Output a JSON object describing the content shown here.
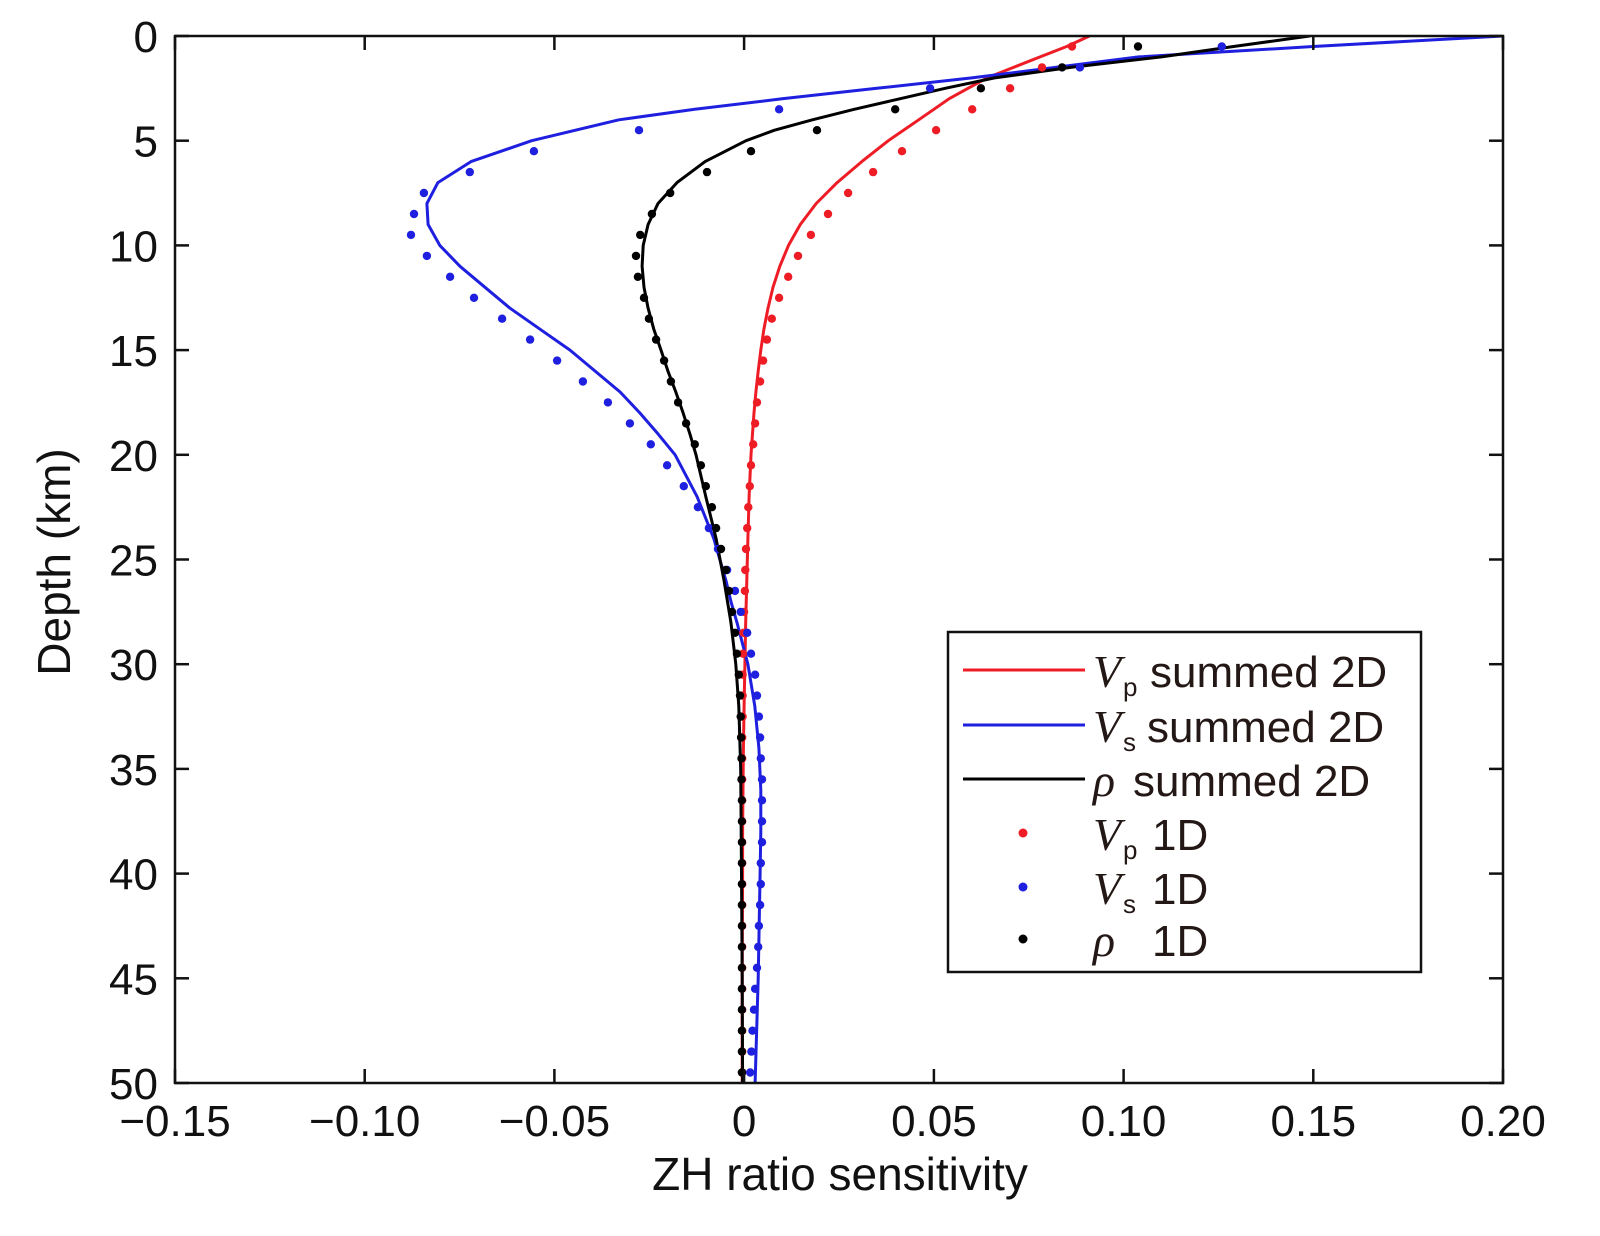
{
  "chart_data": {
    "type": "line",
    "xlabel": "ZH ratio sensitivity",
    "ylabel": "Depth (km)",
    "xlim": [
      -0.15,
      0.2
    ],
    "ylim": [
      0,
      50
    ],
    "y_inverted": true,
    "grid": false,
    "legend_position": "lower-right",
    "xticks": [
      -0.15,
      -0.1,
      -0.05,
      0,
      0.05,
      0.1,
      0.15,
      0.2
    ],
    "xtick_labels": [
      "−0.15",
      "−0.10",
      "−0.05",
      "0",
      "0.05",
      "0.10",
      "0.15",
      "0.20"
    ],
    "yticks": [
      0,
      5,
      10,
      15,
      20,
      25,
      30,
      35,
      40,
      45,
      50
    ],
    "ytick_labels": [
      "0",
      "5",
      "10",
      "15",
      "20",
      "25",
      "30",
      "35",
      "40",
      "45",
      "50"
    ],
    "series": [
      {
        "label_symbol": "V",
        "label_sub": "p",
        "label_text": "summed 2D",
        "color": "#ee1c25",
        "show_line": true,
        "show_markers": false,
        "depth": [
          0,
          0.5,
          1,
          1.5,
          2,
          2.5,
          3,
          3.5,
          4,
          5,
          6,
          7,
          8,
          9,
          10,
          11,
          12,
          13,
          14,
          15,
          16,
          17,
          18,
          19,
          20,
          22,
          24,
          26,
          28,
          30,
          32,
          34,
          36,
          38,
          40,
          45,
          50
        ],
        "values": [
          0.091,
          0.085,
          0.078,
          0.071,
          0.064,
          0.059,
          0.054,
          0.05,
          0.046,
          0.038,
          0.031,
          0.0245,
          0.019,
          0.0148,
          0.0117,
          0.0094,
          0.0076,
          0.0063,
          0.0052,
          0.0044,
          0.0037,
          0.0031,
          0.0026,
          0.0022,
          0.0018,
          0.0013,
          0.001,
          0.0007,
          0.0004,
          0.0002,
          0.0,
          -0.0002,
          -0.0003,
          -0.0004,
          -0.0004,
          -0.0005,
          -0.0005
        ]
      },
      {
        "label_symbol": "V",
        "label_sub": "s",
        "label_text": "summed 2D",
        "color": "#1f1fe0",
        "show_line": true,
        "show_markers": false,
        "depth": [
          0,
          0.5,
          1,
          1.5,
          2,
          2.5,
          3,
          3.5,
          4,
          5,
          6,
          7,
          8,
          9,
          10,
          11,
          12,
          13,
          14,
          15,
          16,
          17,
          18,
          19,
          20,
          22,
          24,
          26,
          27,
          28,
          30,
          32,
          34,
          36,
          38,
          40,
          45,
          50
        ],
        "values": [
          0.2,
          0.15,
          0.104,
          0.082,
          0.06,
          0.035,
          0.01,
          -0.013,
          -0.033,
          -0.056,
          -0.072,
          -0.0807,
          -0.0836,
          -0.0833,
          -0.0802,
          -0.0749,
          -0.0683,
          -0.0617,
          -0.0538,
          -0.0459,
          -0.0393,
          -0.0327,
          -0.0275,
          -0.0227,
          -0.0182,
          -0.0124,
          -0.008,
          -0.0048,
          -0.0035,
          -0.0019,
          0.001,
          0.0028,
          0.0039,
          0.0044,
          0.0044,
          0.0042,
          0.0037,
          0.0029
        ]
      },
      {
        "label_symbol": "ρ",
        "label_text": "summed 2D",
        "color": "#000000",
        "show_line": true,
        "show_markers": false,
        "depth": [
          0,
          0.5,
          1,
          1.5,
          2,
          2.5,
          3,
          3.5,
          4,
          4.5,
          5,
          6,
          7,
          8,
          9,
          10,
          11,
          12,
          13,
          14,
          15,
          16,
          17,
          18,
          19,
          20,
          22,
          24,
          26,
          28,
          30,
          32,
          35,
          40,
          45,
          50
        ],
        "values": [
          0.149,
          0.129,
          0.11,
          0.086,
          0.066,
          0.053,
          0.041,
          0.029,
          0.018,
          0.008,
          0.0005,
          -0.0103,
          -0.0177,
          -0.0227,
          -0.0253,
          -0.0266,
          -0.0269,
          -0.0264,
          -0.0253,
          -0.0238,
          -0.0219,
          -0.0201,
          -0.018,
          -0.0161,
          -0.0143,
          -0.0127,
          -0.0101,
          -0.0074,
          -0.0053,
          -0.0035,
          -0.0022,
          -0.0014,
          -0.0009,
          -0.0007,
          -0.0005,
          -0.0004
        ]
      },
      {
        "label_symbol": "V",
        "label_sub": "p",
        "label_text": "1D",
        "color": "#ee1c25",
        "show_line": false,
        "show_markers": true,
        "depth": [
          0.5,
          1.5,
          2.5,
          3.5,
          4.5,
          5.5,
          6.5,
          7.5,
          8.5,
          9.5,
          10.5,
          11.5,
          12.5,
          13.5,
          14.5,
          15.5,
          16.5,
          17.5,
          18.5,
          19.5,
          20.5,
          21.5,
          22.5,
          23.5,
          24.5,
          25.5,
          26.5,
          27.5,
          28.5,
          29.5,
          30.5,
          31.5,
          32.5,
          33.5,
          34.5,
          35.5,
          36.5,
          37.5,
          38.5,
          39.5,
          40.5,
          41.5,
          42.5,
          43.5,
          44.5,
          45.5,
          46.5,
          47.5,
          48.5,
          49.5
        ],
        "values": [
          0.0864,
          0.0785,
          0.0701,
          0.0601,
          0.0506,
          0.0416,
          0.034,
          0.0274,
          0.0221,
          0.0176,
          0.0142,
          0.0116,
          0.0092,
          0.0073,
          0.006,
          0.005,
          0.0042,
          0.0034,
          0.0029,
          0.0024,
          0.0018,
          0.0015,
          0.0011,
          0.0008,
          0.0005,
          0.0003,
          0.0002,
          0.0,
          -0.0002,
          -0.0003,
          -0.0004,
          -0.0004,
          -0.0004,
          -0.0005,
          -0.0005,
          -0.0005,
          -0.0005,
          -0.0005,
          -0.0005,
          -0.0005,
          -0.0005,
          -0.0005,
          -0.0005,
          -0.0005,
          -0.0005,
          -0.0005,
          -0.0005,
          -0.0005,
          -0.0005,
          -0.0005
        ]
      },
      {
        "label_symbol": "V",
        "label_sub": "s",
        "label_text": "1D",
        "color": "#1f1fe0",
        "show_line": false,
        "show_markers": true,
        "depth": [
          0.5,
          1.5,
          2.5,
          3.5,
          4.5,
          5.5,
          6.5,
          7.5,
          8.5,
          9.5,
          10.5,
          11.5,
          12.5,
          13.5,
          14.5,
          15.5,
          16.5,
          17.5,
          18.5,
          19.5,
          20.5,
          21.5,
          22.5,
          23.5,
          24.5,
          25.5,
          26.5,
          27.5,
          28.5,
          29.5,
          30.5,
          31.5,
          32.5,
          33.5,
          34.5,
          35.5,
          36.5,
          37.5,
          38.5,
          39.5,
          40.5,
          41.5,
          42.5,
          43.5,
          44.5,
          45.5,
          46.5,
          47.5,
          48.5,
          49.5
        ],
        "values": [
          0.1259,
          0.0885,
          0.049,
          0.0092,
          -0.0277,
          -0.0554,
          -0.0723,
          -0.0844,
          -0.087,
          -0.0878,
          -0.0836,
          -0.0775,
          -0.0712,
          -0.0638,
          -0.0564,
          -0.0493,
          -0.0425,
          -0.0359,
          -0.0301,
          -0.0246,
          -0.0203,
          -0.0159,
          -0.0122,
          -0.0093,
          -0.0069,
          -0.0045,
          -0.0024,
          -0.0009,
          0.0008,
          0.0018,
          0.0029,
          0.0034,
          0.0039,
          0.0042,
          0.0044,
          0.0047,
          0.0047,
          0.0047,
          0.0047,
          0.0044,
          0.0044,
          0.0042,
          0.0039,
          0.0037,
          0.0034,
          0.0029,
          0.0026,
          0.0022,
          0.0019,
          0.0016
        ]
      },
      {
        "label_symbol": "ρ",
        "label_text": "1D",
        "color": "#000000",
        "show_line": false,
        "show_markers": true,
        "depth": [
          0.5,
          1.5,
          2.5,
          3.5,
          4.5,
          5.5,
          6.5,
          7.5,
          8.5,
          9.5,
          10.5,
          11.5,
          12.5,
          13.5,
          14.5,
          15.5,
          16.5,
          17.5,
          18.5,
          19.5,
          20.5,
          21.5,
          22.5,
          23.5,
          24.5,
          25.5,
          26.5,
          27.5,
          28.5,
          29.5,
          30.5,
          31.5,
          32.5,
          33.5,
          34.5,
          35.5,
          36.5,
          37.5,
          38.5,
          39.5,
          40.5,
          41.5,
          42.5,
          43.5,
          44.5,
          45.5,
          46.5,
          47.5,
          48.5,
          49.5
        ],
        "values": [
          0.1038,
          0.0838,
          0.0624,
          0.0398,
          0.0192,
          0.0018,
          -0.0098,
          -0.0195,
          -0.0243,
          -0.0274,
          -0.0285,
          -0.028,
          -0.0264,
          -0.0251,
          -0.0232,
          -0.0211,
          -0.0193,
          -0.0174,
          -0.0153,
          -0.013,
          -0.0114,
          -0.0101,
          -0.0085,
          -0.0074,
          -0.0061,
          -0.0048,
          -0.004,
          -0.0032,
          -0.0024,
          -0.0019,
          -0.0014,
          -0.0011,
          -0.0009,
          -0.0008,
          -0.0007,
          -0.0007,
          -0.0006,
          -0.0006,
          -0.0006,
          -0.0006,
          -0.0006,
          -0.0006,
          -0.0006,
          -0.0006,
          -0.0006,
          -0.0006,
          -0.0006,
          -0.0006,
          -0.0006,
          -0.0006
        ]
      }
    ]
  }
}
